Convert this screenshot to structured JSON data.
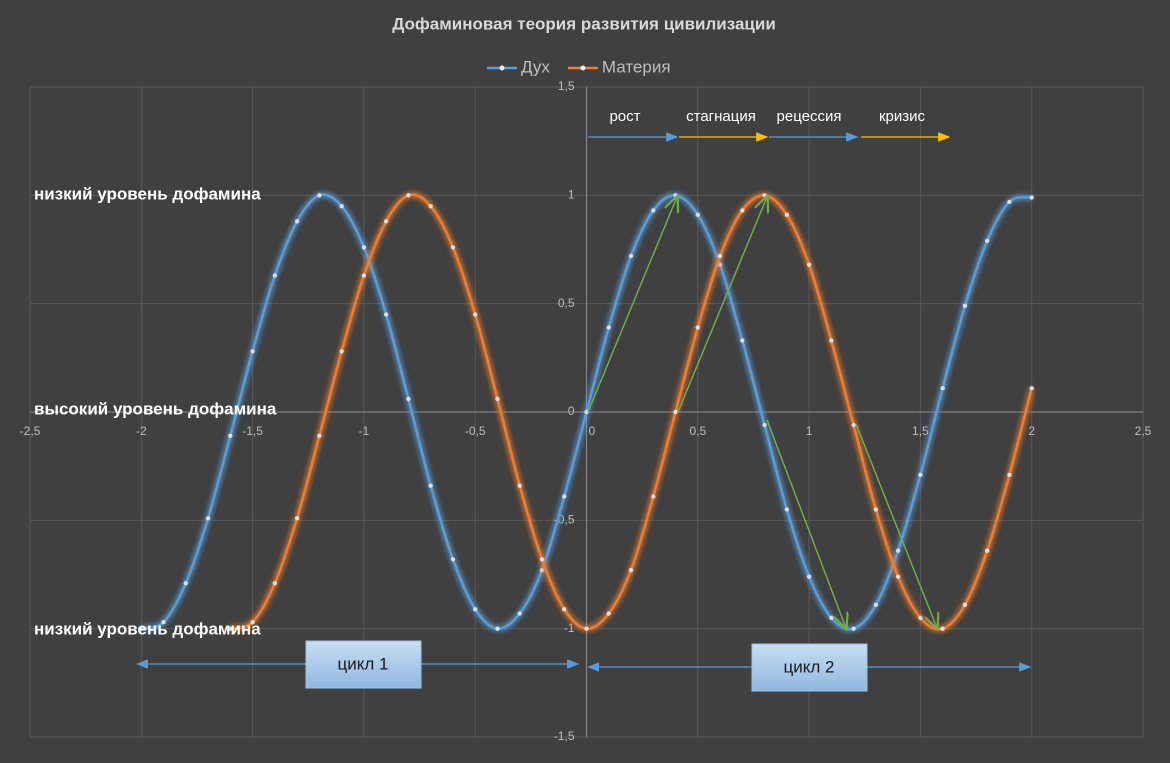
{
  "chart_data": {
    "type": "scatter-smooth",
    "title": "Дофаминовая теория развития цивилизации",
    "legend": "top",
    "grid": true,
    "xlim": [
      -2.5,
      2.5
    ],
    "xticks": [
      {
        "value": -2.5,
        "label": "-2,5"
      },
      -2,
      {
        "value": -1.5,
        "label": "-1,5"
      },
      -1,
      {
        "value": -0.5,
        "label": "-0,5"
      },
      0,
      {
        "value": 0.5,
        "label": "0,5"
      },
      1,
      {
        "value": 1.5,
        "label": "1,5"
      },
      2,
      {
        "value": 2.5,
        "label": "2,5"
      }
    ],
    "ylim": [
      -1.5,
      1.5
    ],
    "yticks": [
      {
        "value": -1.5,
        "label": "-1,5"
      },
      -1,
      {
        "value": -0.5,
        "label": "-0,5"
      },
      0,
      {
        "value": 0.5,
        "label": "0,5"
      },
      1,
      {
        "value": 1.5,
        "label": "1,5"
      }
    ],
    "series": [
      {
        "name": "Дух",
        "color": "#5b9bd5",
        "x": [
          -2,
          -1.9,
          -1.8,
          -1.7,
          -1.6,
          -1.5,
          -1.4,
          -1.3,
          -1.2,
          -1.1,
          -1,
          -0.9,
          -0.8,
          -0.7,
          -0.6,
          -0.5,
          -0.4,
          -0.3,
          -0.2,
          -0.1,
          0,
          0.1,
          0.2,
          0.3,
          0.4,
          0.5,
          0.6,
          0.7,
          0.8,
          0.9,
          1,
          1.1,
          1.2,
          1.3,
          1.4,
          1.5,
          1.6,
          1.7,
          1.8,
          1.9,
          2
        ],
        "values": [
          -1,
          -0.97,
          -0.79,
          -0.49,
          -0.11,
          0.28,
          0.63,
          0.88,
          1,
          0.95,
          0.76,
          0.45,
          0.06,
          -0.34,
          -0.68,
          -0.91,
          -1,
          -0.93,
          -0.73,
          -0.39,
          0,
          0.39,
          0.72,
          0.93,
          1,
          0.91,
          0.68,
          0.33,
          -0.06,
          -0.45,
          -0.76,
          -0.95,
          -1,
          -0.89,
          -0.64,
          -0.29,
          0.11,
          0.49,
          0.79,
          0.97,
          0.99
        ]
      },
      {
        "name": "Материя",
        "color": "#ed7d31",
        "x": [
          -1.6,
          -1.5,
          -1.4,
          -1.3,
          -1.2,
          -1.1,
          -1,
          -0.9,
          -0.8,
          -0.7,
          -0.6,
          -0.5,
          -0.4,
          -0.3,
          -0.2,
          -0.1,
          0,
          0.1,
          0.2,
          0.3,
          0.4,
          0.5,
          0.6,
          0.7,
          0.8,
          0.9,
          1,
          1.1,
          1.2,
          1.3,
          1.4,
          1.5,
          1.6,
          1.7,
          1.8,
          1.9,
          2
        ],
        "values": [
          -1,
          -0.97,
          -0.79,
          -0.49,
          -0.11,
          0.28,
          0.63,
          0.88,
          1,
          0.95,
          0.76,
          0.45,
          0.06,
          -0.34,
          -0.68,
          -0.91,
          -1,
          -0.93,
          -0.73,
          -0.39,
          0,
          0.39,
          0.72,
          0.93,
          1,
          0.91,
          0.68,
          0.33,
          -0.06,
          -0.45,
          -0.76,
          -0.95,
          -1,
          -0.89,
          -0.64,
          -0.29,
          0.11
        ]
      }
    ],
    "annotations": {
      "levels": [
        "низкий уровень дофамина",
        "высокий уровень дофамина",
        "низкий уровень дофамина"
      ],
      "phases": [
        "рост",
        "стагнация",
        "рецессия",
        "кризис"
      ],
      "cycles": [
        "цикл 1",
        "цикл 2"
      ]
    }
  }
}
